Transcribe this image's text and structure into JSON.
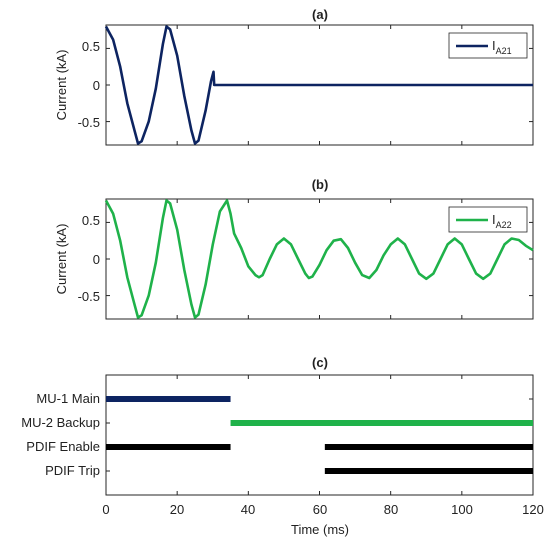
{
  "chart_data": [
    {
      "id": "a",
      "type": "line",
      "title": "(a)",
      "ylabel": "Current (kA)",
      "xlim": [
        0,
        120
      ],
      "ylim": [
        -0.82,
        0.82
      ],
      "yticks": [
        0.5,
        0,
        -0.5
      ],
      "ytick_labels": [
        "0.5",
        "0",
        "-0.5"
      ],
      "grid": false,
      "legend": {
        "placement": "top-right",
        "main": "I",
        "sub": "A21"
      },
      "series": [
        {
          "name": "IA21",
          "color": "#0d2461",
          "points": [
            [
              0,
              0.8
            ],
            [
              2,
              0.62
            ],
            [
              4,
              0.25
            ],
            [
              6,
              -0.25
            ],
            [
              8,
              -0.62
            ],
            [
              9,
              -0.8
            ],
            [
              10,
              -0.77
            ],
            [
              12,
              -0.5
            ],
            [
              14,
              -0.05
            ],
            [
              16,
              0.56
            ],
            [
              17,
              0.8
            ],
            [
              18,
              0.76
            ],
            [
              20,
              0.4
            ],
            [
              22,
              -0.15
            ],
            [
              24,
              -0.62
            ],
            [
              25,
              -0.8
            ],
            [
              26,
              -0.76
            ],
            [
              28,
              -0.35
            ],
            [
              29.5,
              0.05
            ],
            [
              30.2,
              0.18
            ],
            [
              30.4,
              0.0
            ],
            [
              120,
              0.0
            ]
          ]
        }
      ]
    },
    {
      "id": "b",
      "type": "line",
      "title": "(b)",
      "ylabel": "Current (kA)",
      "xlim": [
        0,
        120
      ],
      "ylim": [
        -0.82,
        0.82
      ],
      "yticks": [
        0.5,
        0,
        -0.5
      ],
      "ytick_labels": [
        "0.5",
        "0",
        "-0.5"
      ],
      "grid": false,
      "legend": {
        "placement": "top-right",
        "main": "I",
        "sub": "A22"
      },
      "series": [
        {
          "name": "IA22",
          "color": "#1fb24a",
          "points": [
            [
              0,
              0.8
            ],
            [
              2,
              0.62
            ],
            [
              4,
              0.25
            ],
            [
              6,
              -0.25
            ],
            [
              8,
              -0.62
            ],
            [
              9,
              -0.8
            ],
            [
              10,
              -0.77
            ],
            [
              12,
              -0.5
            ],
            [
              14,
              -0.05
            ],
            [
              16,
              0.56
            ],
            [
              17,
              0.8
            ],
            [
              18,
              0.76
            ],
            [
              20,
              0.4
            ],
            [
              22,
              -0.15
            ],
            [
              24,
              -0.62
            ],
            [
              25,
              -0.8
            ],
            [
              26,
              -0.76
            ],
            [
              28,
              -0.35
            ],
            [
              30,
              0.2
            ],
            [
              32,
              0.65
            ],
            [
              34,
              0.8
            ],
            [
              35,
              0.62
            ],
            [
              36,
              0.35
            ],
            [
              38,
              0.15
            ],
            [
              40,
              -0.1
            ],
            [
              42,
              -0.22
            ],
            [
              43,
              -0.25
            ],
            [
              44,
              -0.22
            ],
            [
              46,
              0.0
            ],
            [
              48,
              0.2
            ],
            [
              50,
              0.28
            ],
            [
              52,
              0.2
            ],
            [
              54,
              0.0
            ],
            [
              56,
              -0.2
            ],
            [
              57,
              -0.26
            ],
            [
              58,
              -0.24
            ],
            [
              60,
              -0.08
            ],
            [
              62,
              0.12
            ],
            [
              64,
              0.25
            ],
            [
              66,
              0.27
            ],
            [
              68,
              0.15
            ],
            [
              70,
              -0.05
            ],
            [
              72,
              -0.22
            ],
            [
              74,
              -0.26
            ],
            [
              76,
              -0.15
            ],
            [
              78,
              0.05
            ],
            [
              80,
              0.2
            ],
            [
              82,
              0.28
            ],
            [
              84,
              0.2
            ],
            [
              86,
              0.0
            ],
            [
              88,
              -0.2
            ],
            [
              90,
              -0.27
            ],
            [
              92,
              -0.2
            ],
            [
              94,
              0.0
            ],
            [
              96,
              0.2
            ],
            [
              98,
              0.28
            ],
            [
              100,
              0.2
            ],
            [
              102,
              0.0
            ],
            [
              104,
              -0.2
            ],
            [
              106,
              -0.27
            ],
            [
              108,
              -0.2
            ],
            [
              110,
              0.0
            ],
            [
              112,
              0.2
            ],
            [
              114,
              0.28
            ],
            [
              116,
              0.26
            ],
            [
              118,
              0.18
            ],
            [
              120,
              0.12
            ]
          ]
        }
      ]
    },
    {
      "id": "c",
      "type": "timeline",
      "title": "(c)",
      "xlabel": "Time (ms)",
      "xlim": [
        0,
        120
      ],
      "xticks": [
        0,
        20,
        40,
        60,
        80,
        100,
        120
      ],
      "xtick_labels": [
        "0",
        "20",
        "40",
        "60",
        "80",
        "100",
        "120"
      ],
      "grid": false,
      "rows": [
        {
          "label": "MU-1 Main",
          "color": "#0d2461",
          "intervals": [
            [
              0,
              35
            ]
          ]
        },
        {
          "label": "MU-2 Backup",
          "color": "#1fb24a",
          "intervals": [
            [
              35,
              120
            ]
          ]
        },
        {
          "label": "PDIF Enable",
          "color": "#000000",
          "intervals": [
            [
              0,
              35
            ],
            [
              61.5,
              120
            ]
          ]
        },
        {
          "label": "PDIF Trip",
          "color": "#000000",
          "intervals": [
            [
              61.5,
              120
            ]
          ]
        }
      ]
    }
  ]
}
